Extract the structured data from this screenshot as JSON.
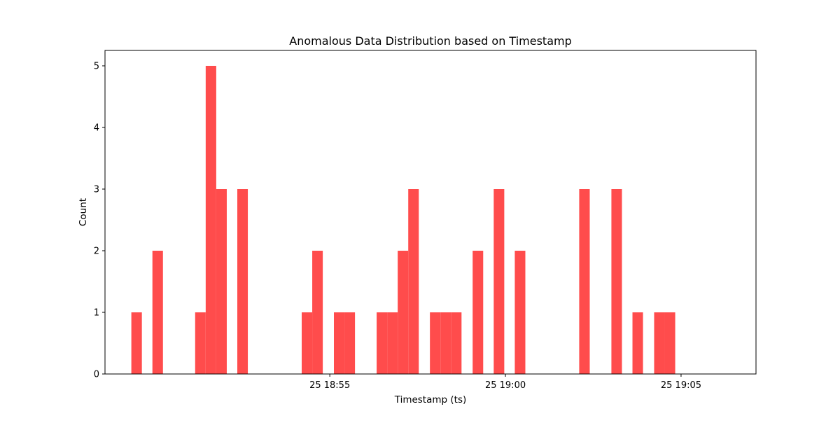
{
  "chart_data": {
    "type": "bar",
    "title": "Anomalous Data Distribution based on Timestamp",
    "xlabel": "Timestamp (ts)",
    "ylabel": "Count",
    "bar_color": "#ff4c4c",
    "ylim": [
      0,
      5.25
    ],
    "xlim": [
      "18:48:36",
      "19:07:08"
    ],
    "y_ticks": [
      0,
      1,
      2,
      3,
      4,
      5
    ],
    "x_ticks": [
      {
        "value": "18:55:00",
        "label": "25 18:55"
      },
      {
        "value": "19:00:00",
        "label": "25 19:00"
      },
      {
        "value": "19:05:00",
        "label": "25 19:05"
      }
    ],
    "grid": false,
    "bins": [
      {
        "start": "18:49:21",
        "end": "18:49:39",
        "count": 1
      },
      {
        "start": "18:49:57",
        "end": "18:50:15",
        "count": 2
      },
      {
        "start": "18:51:10",
        "end": "18:51:28",
        "count": 1
      },
      {
        "start": "18:51:28",
        "end": "18:51:46",
        "count": 5
      },
      {
        "start": "18:51:46",
        "end": "18:52:04",
        "count": 3
      },
      {
        "start": "18:52:22",
        "end": "18:52:40",
        "count": 3
      },
      {
        "start": "18:54:12",
        "end": "18:54:30",
        "count": 1
      },
      {
        "start": "18:54:30",
        "end": "18:54:48",
        "count": 2
      },
      {
        "start": "18:55:07",
        "end": "18:55:25",
        "count": 1
      },
      {
        "start": "18:55:25",
        "end": "18:55:43",
        "count": 1
      },
      {
        "start": "18:56:20",
        "end": "18:56:38",
        "count": 1
      },
      {
        "start": "18:56:38",
        "end": "18:56:56",
        "count": 1
      },
      {
        "start": "18:56:56",
        "end": "18:57:14",
        "count": 2
      },
      {
        "start": "18:57:14",
        "end": "18:57:32",
        "count": 3
      },
      {
        "start": "18:57:51",
        "end": "18:58:09",
        "count": 1
      },
      {
        "start": "18:58:09",
        "end": "18:58:27",
        "count": 1
      },
      {
        "start": "18:58:27",
        "end": "18:58:45",
        "count": 1
      },
      {
        "start": "18:59:04",
        "end": "18:59:22",
        "count": 2
      },
      {
        "start": "18:59:40",
        "end": "18:59:58",
        "count": 3
      },
      {
        "start": "19:00:16",
        "end": "19:00:34",
        "count": 2
      },
      {
        "start": "19:02:06",
        "end": "19:02:24",
        "count": 3
      },
      {
        "start": "19:03:01",
        "end": "19:03:19",
        "count": 3
      },
      {
        "start": "19:03:37",
        "end": "19:03:55",
        "count": 1
      },
      {
        "start": "19:04:14",
        "end": "19:04:32",
        "count": 1
      },
      {
        "start": "19:04:32",
        "end": "19:04:50",
        "count": 1
      }
    ]
  }
}
